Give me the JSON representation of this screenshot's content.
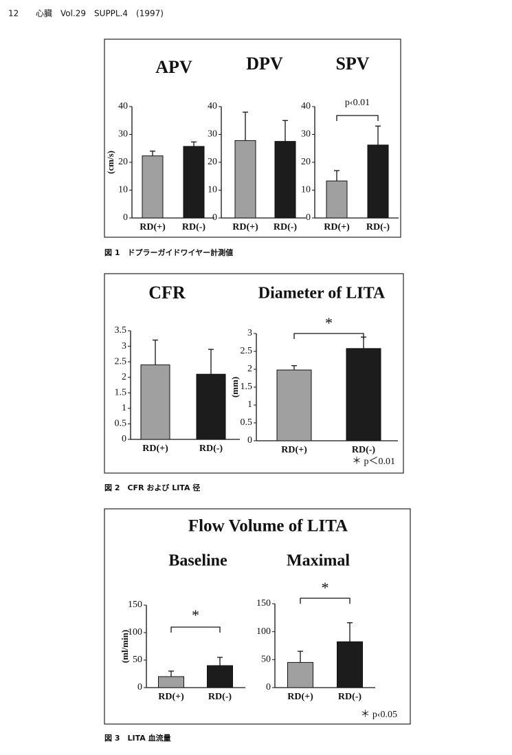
{
  "header": {
    "page": "12",
    "journal": "心臓　Vol.29　SUPPL.4　(1997)"
  },
  "panel_titles": [
    "Flow Volume of LITA"
  ],
  "captions": [
    "図 1　ドプラーガイドワイヤー計測値",
    "図 2　CFR および LITA 径",
    "図 3　LITA 血流量"
  ],
  "chart_data": [
    {
      "type": "bar",
      "title": "APV",
      "y_label": "(cm/s)",
      "categories": [
        "RD(+)",
        "RD(-)"
      ],
      "values": [
        22.3,
        25.7
      ],
      "errors": [
        1.7,
        1.6
      ],
      "colors": [
        "#a0a0a0",
        "#1c1c1c"
      ],
      "ylim": [
        0,
        40
      ],
      "yticks": [
        0,
        10,
        20,
        30,
        40
      ]
    },
    {
      "type": "bar",
      "title": "DPV",
      "categories": [
        "RD(+)",
        "RD(-)"
      ],
      "values": [
        27.8,
        27.5
      ],
      "errors": [
        10.2,
        7.5
      ],
      "colors": [
        "#a0a0a0",
        "#1c1c1c"
      ],
      "ylim": [
        0,
        40
      ],
      "yticks": [
        0,
        10,
        20,
        30,
        40
      ]
    },
    {
      "type": "bar",
      "title": "SPV",
      "annotation": "p‹0.01",
      "categories": [
        "RD(+)",
        "RD(-)"
      ],
      "values": [
        13.3,
        26.2
      ],
      "errors": [
        3.7,
        6.8
      ],
      "colors": [
        "#a0a0a0",
        "#1c1c1c"
      ],
      "ylim": [
        0,
        40
      ],
      "yticks": [
        0,
        10,
        20,
        30,
        40
      ]
    },
    {
      "type": "bar",
      "title": "CFR",
      "categories": [
        "RD(+)",
        "RD(-)"
      ],
      "values": [
        2.4,
        2.1
      ],
      "errors": [
        0.8,
        0.8
      ],
      "colors": [
        "#a0a0a0",
        "#1c1c1c"
      ],
      "ylim": [
        0,
        3.5
      ],
      "yticks": [
        0,
        0.5,
        1,
        1.5,
        2,
        2.5,
        3,
        3.5
      ]
    },
    {
      "type": "bar",
      "title": "Diameter of LITA",
      "y_label": "(mm)",
      "annotation": "*",
      "note": "＊ p＜0.01",
      "categories": [
        "RD(+)",
        "RD(-)"
      ],
      "values": [
        1.98,
        2.58
      ],
      "errors": [
        0.12,
        0.32
      ],
      "colors": [
        "#a0a0a0",
        "#1c1c1c"
      ],
      "ylim": [
        0,
        3
      ],
      "yticks": [
        0,
        0.5,
        1,
        1.5,
        2,
        2.5,
        3
      ]
    },
    {
      "type": "bar",
      "title": "Baseline",
      "y_label": "(ml/min)",
      "annotation": "*",
      "categories": [
        "RD(+)",
        "RD(-)"
      ],
      "values": [
        20,
        40
      ],
      "errors": [
        10,
        15
      ],
      "colors": [
        "#a0a0a0",
        "#1c1c1c"
      ],
      "ylim": [
        0,
        150
      ],
      "yticks": [
        0,
        50,
        100,
        150
      ]
    },
    {
      "type": "bar",
      "title": "Maximal",
      "annotation": "*",
      "note": "＊ p‹0.05",
      "categories": [
        "RD(+)",
        "RD(-)"
      ],
      "values": [
        45,
        82
      ],
      "errors": [
        20,
        34
      ],
      "colors": [
        "#a0a0a0",
        "#1c1c1c"
      ],
      "ylim": [
        0,
        150
      ],
      "yticks": [
        0,
        50,
        100,
        150
      ]
    }
  ]
}
